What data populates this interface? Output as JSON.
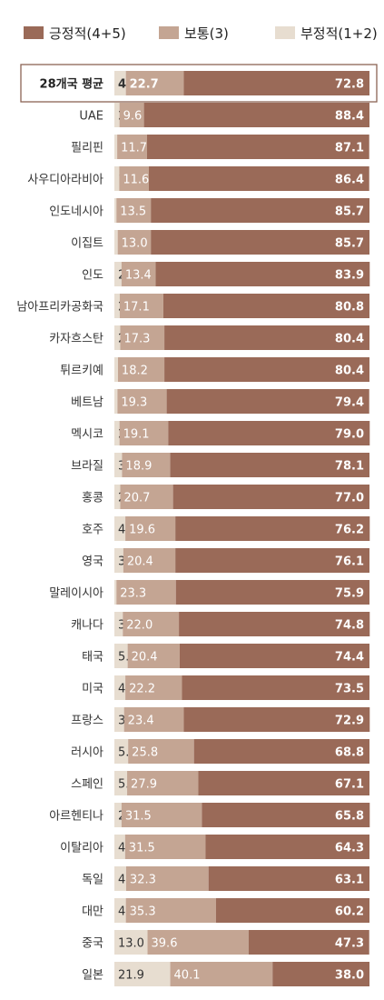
{
  "legend": [
    {
      "key": "positive",
      "label": "긍정적(4+5)",
      "color": "#9a6a58"
    },
    {
      "key": "neutral",
      "label": "보통(3)",
      "color": "#c4a593"
    },
    {
      "key": "negative",
      "label": "부정적(1+2)",
      "color": "#e7ddd0"
    }
  ],
  "chart_data": {
    "type": "bar",
    "stacked": true,
    "orientation": "horizontal",
    "highlight_category": "28개국 평균",
    "categories": [
      "28개국 평균",
      "UAE",
      "필리핀",
      "사우디아라비아",
      "인도네시아",
      "이집트",
      "인도",
      "남아프리카공화국",
      "카자흐스탄",
      "튀르키예",
      "베트남",
      "멕시코",
      "브라질",
      "홍콩",
      "호주",
      "영국",
      "말레이시아",
      "캐나다",
      "태국",
      "미국",
      "프랑스",
      "러시아",
      "스페인",
      "아르헨티나",
      "이탈리아",
      "독일",
      "대만",
      "중국",
      "일본"
    ],
    "series": [
      {
        "name": "부정적(1+2)",
        "color": "#e7ddd0",
        "values": [
          4.5,
          2.0,
          1.1,
          1.9,
          0.8,
          1.3,
          2.8,
          2.1,
          2.3,
          1.4,
          1.2,
          2.0,
          3.0,
          2.3,
          4.3,
          3.5,
          0.8,
          3.3,
          5.2,
          4.3,
          3.8,
          5.4,
          5.0,
          2.8,
          4.2,
          4.6,
          4.5,
          13.0,
          21.9
        ]
      },
      {
        "name": "보통(3)",
        "color": "#c4a593",
        "values": [
          22.7,
          9.6,
          11.7,
          11.6,
          13.5,
          13.0,
          13.4,
          17.1,
          17.3,
          18.2,
          19.3,
          19.1,
          18.9,
          20.7,
          19.6,
          20.4,
          23.3,
          22.0,
          20.4,
          22.2,
          23.4,
          25.8,
          27.9,
          31.5,
          31.5,
          32.3,
          35.3,
          39.6,
          40.1
        ]
      },
      {
        "name": "긍정적(4+5)",
        "color": "#9a6a58",
        "values": [
          72.8,
          88.4,
          87.1,
          86.4,
          85.7,
          85.7,
          83.9,
          80.8,
          80.4,
          80.4,
          79.4,
          79.0,
          78.1,
          77.0,
          76.2,
          76.1,
          75.9,
          74.8,
          74.4,
          73.5,
          72.9,
          68.8,
          67.1,
          65.8,
          64.3,
          63.1,
          60.2,
          47.3,
          38.0
        ]
      }
    ],
    "xlim": [
      0,
      100
    ]
  }
}
